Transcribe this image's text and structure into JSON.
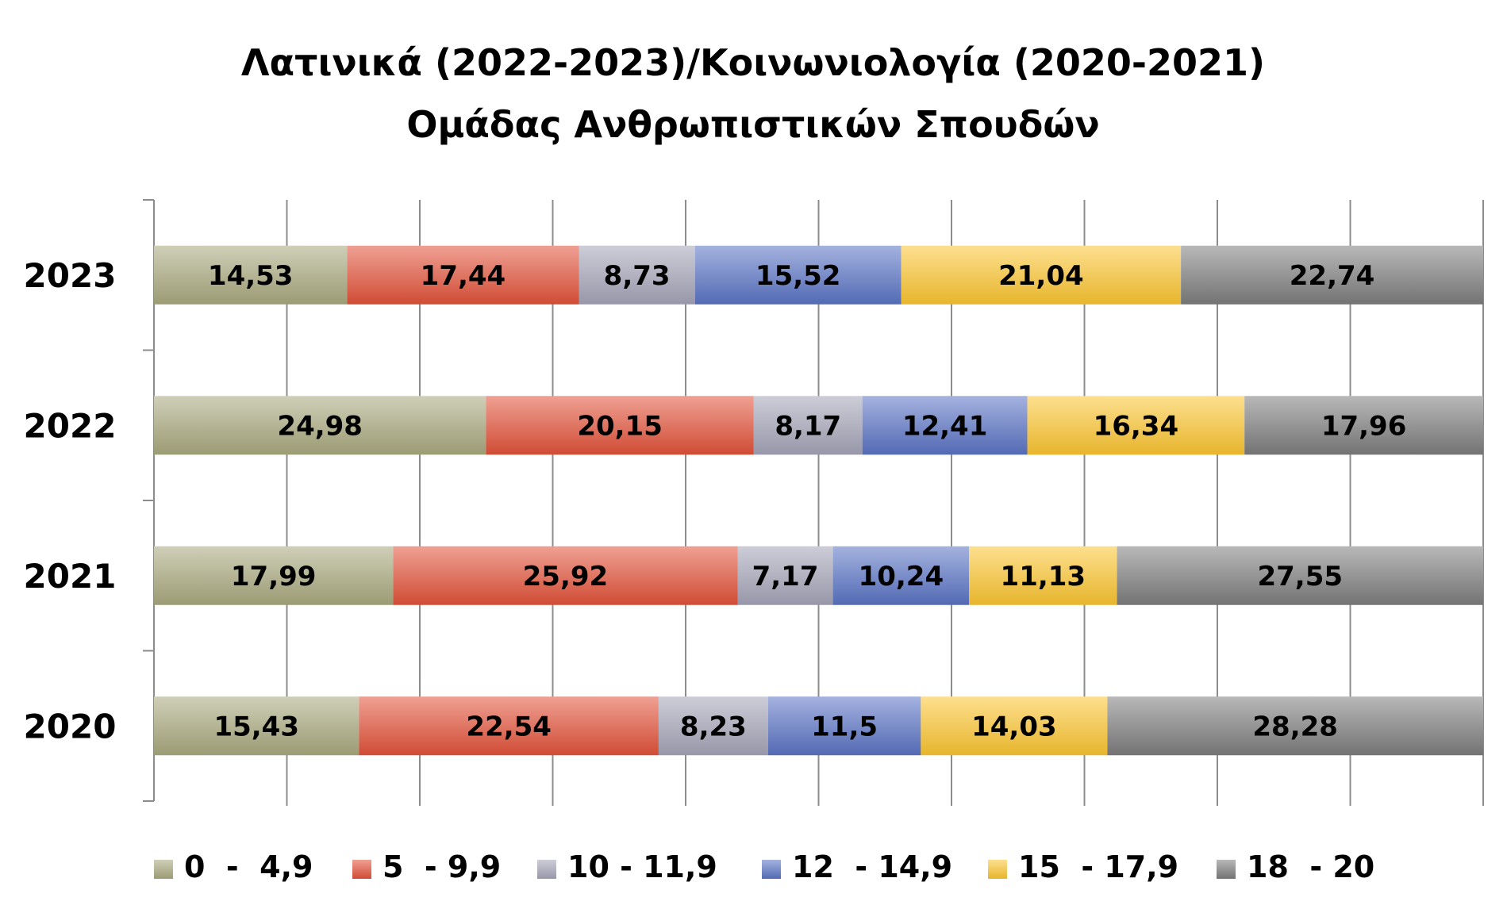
{
  "chart_data": {
    "type": "bar",
    "orientation": "horizontal",
    "stacked": "percent",
    "title": "Λατινικά (2022-2023)/Κοινωνιολογία (2020-2021)",
    "subtitle": "Ομάδας Ανθρωπιστικών Σπουδών",
    "categories": [
      "2023",
      "2022",
      "2021",
      "2020"
    ],
    "series": [
      {
        "name": "0  -  4,9",
        "color": "#a8a87e",
        "values": [
          14.53,
          24.98,
          17.99,
          15.43
        ],
        "labels": [
          "14,53",
          "24,98",
          "17,99",
          "15,43"
        ]
      },
      {
        "name": "5  - 9,9",
        "color": "#e2533a",
        "values": [
          17.44,
          20.15,
          25.92,
          22.54
        ],
        "labels": [
          "17,44",
          "20,15",
          "25,92",
          "22,54"
        ]
      },
      {
        "name": "10 - 11,9",
        "color": "#a4a4b8",
        "values": [
          8.73,
          8.17,
          7.17,
          8.23
        ],
        "labels": [
          "8,73",
          "8,17",
          "7,17",
          "8,23"
        ]
      },
      {
        "name": "12  - 14,9",
        "color": "#5a73c4",
        "values": [
          15.52,
          12.41,
          10.24,
          11.5
        ],
        "labels": [
          "15,52",
          "12,41",
          "10,24",
          "11,5"
        ]
      },
      {
        "name": "15  - 17,9",
        "color": "#fbc531",
        "values": [
          21.04,
          16.34,
          11.13,
          14.03
        ],
        "labels": [
          "21,04",
          "16,34",
          "11,13",
          "14,03"
        ]
      },
      {
        "name": "18  - 20",
        "color": "#7d7d7d",
        "values": [
          22.74,
          17.96,
          27.55,
          28.28
        ],
        "labels": [
          "22,74",
          "17,96",
          "27,55",
          "28,28"
        ]
      }
    ],
    "xlim": [
      0,
      100
    ],
    "grid": true,
    "legend_position": "bottom",
    "xlabel": "",
    "ylabel": ""
  }
}
